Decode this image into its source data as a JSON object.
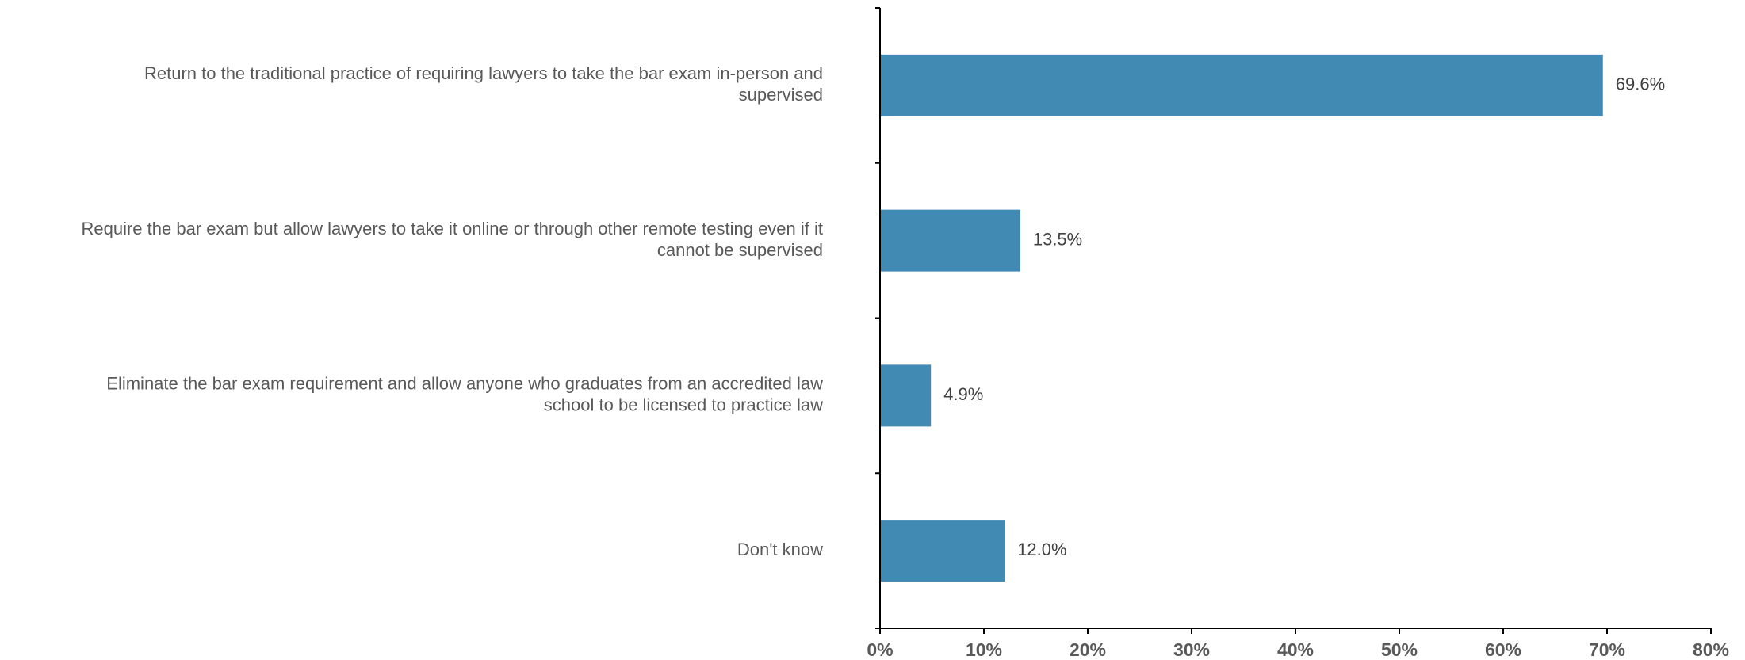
{
  "chart_data": {
    "type": "bar",
    "orientation": "horizontal",
    "categories": [
      [
        "Return to the traditional practice of requiring lawyers to take the bar exam in-person and",
        "supervised"
      ],
      [
        "Require the bar exam but allow lawyers to take it online or through other remote testing even if it",
        "cannot be supervised"
      ],
      [
        "Eliminate the bar exam requirement and allow anyone who graduates from an accredited law",
        "school to be licensed to practice law"
      ],
      [
        "Don't know"
      ]
    ],
    "values": [
      69.6,
      13.5,
      4.9,
      12.0
    ],
    "value_labels": [
      "69.6%",
      "13.5%",
      "4.9%",
      "12.0%"
    ],
    "xlim": [
      0,
      80
    ],
    "x_ticks": [
      0,
      10,
      20,
      30,
      40,
      50,
      60,
      70,
      80
    ],
    "x_tick_labels": [
      "0%",
      "10%",
      "20%",
      "30%",
      "40%",
      "50%",
      "60%",
      "70%",
      "80%"
    ],
    "bar_color": "#418ab3",
    "grid": false,
    "legend": "none",
    "title": "",
    "xlabel": "",
    "ylabel": ""
  }
}
